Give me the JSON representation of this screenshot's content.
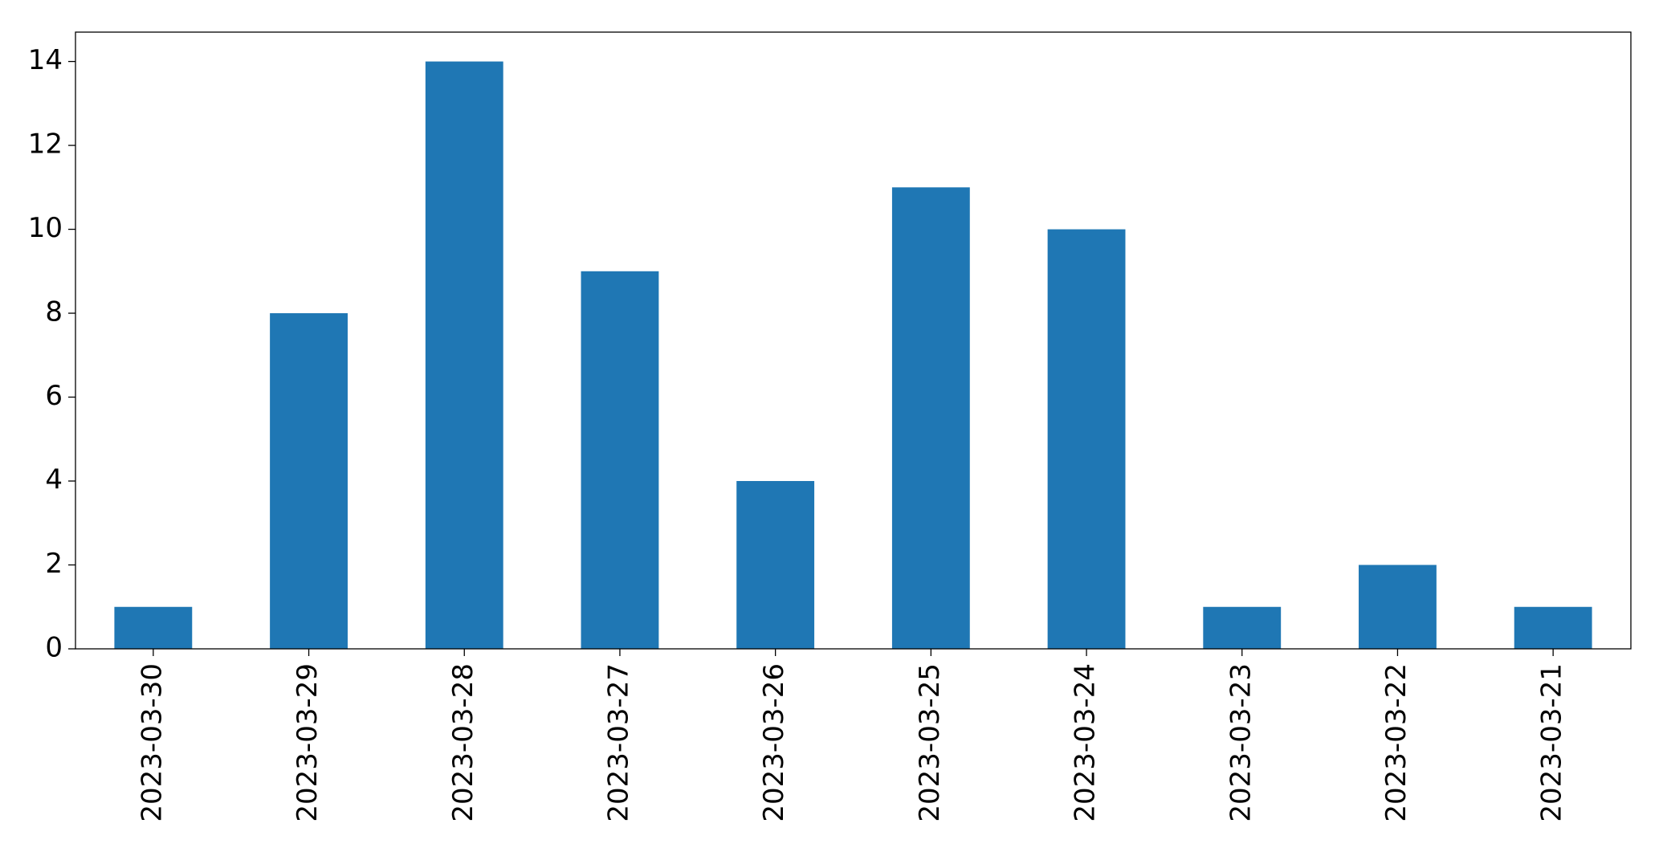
{
  "chart_data": {
    "type": "bar",
    "categories": [
      "2023-03-30",
      "2023-03-29",
      "2023-03-28",
      "2023-03-27",
      "2023-03-26",
      "2023-03-25",
      "2023-03-24",
      "2023-03-23",
      "2023-03-22",
      "2023-03-21"
    ],
    "values": [
      1,
      8,
      14,
      9,
      4,
      11,
      10,
      1,
      2,
      1
    ],
    "color": "#1f77b4",
    "ylim": [
      0,
      14.7
    ],
    "yticks": [
      0,
      2,
      4,
      6,
      8,
      10,
      12,
      14
    ],
    "grid": false
  }
}
